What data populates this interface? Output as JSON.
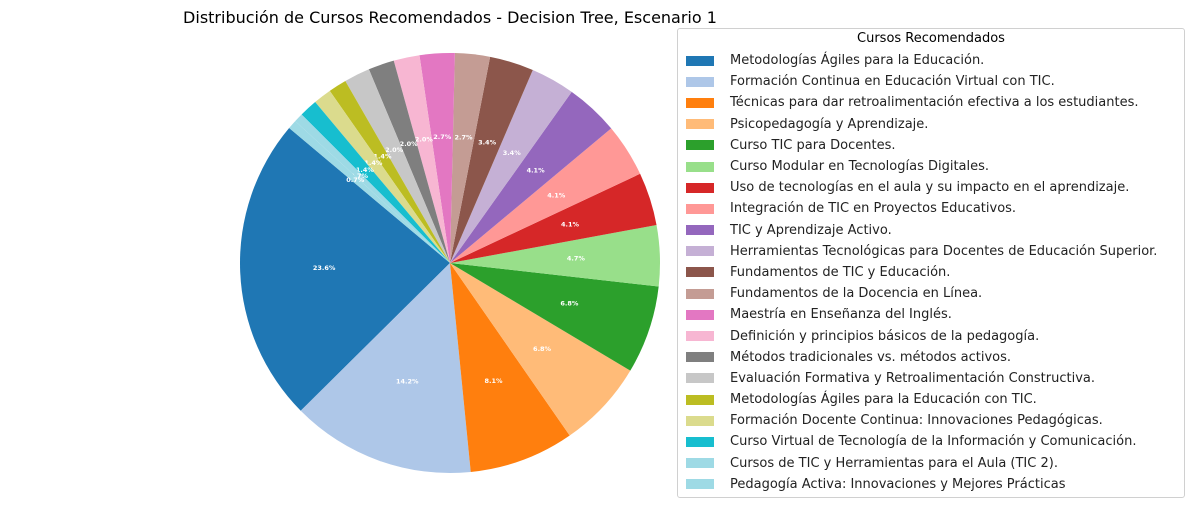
{
  "chart_data": {
    "type": "pie",
    "title": "Distribución de Cursos Recomendados - Decision Tree, Escenario 1",
    "legend_title": "Cursos Recomendados",
    "legend_position": "right",
    "slices": [
      {
        "label": "Metodologías Ágiles para la Educación.",
        "value": 23.6,
        "pct_label": "23.6%",
        "color": "#1f77b4"
      },
      {
        "label": "Formación Continua en Educación Virtual con TIC.",
        "value": 14.2,
        "pct_label": "14.2%",
        "color": "#aec7e8"
      },
      {
        "label": "Técnicas para dar retroalimentación efectiva a los estudiantes.",
        "value": 8.1,
        "pct_label": "8.1%",
        "color": "#ff7f0e"
      },
      {
        "label": "Psicopedagogía y Aprendizaje.",
        "value": 6.8,
        "pct_label": "6.8%",
        "color": "#ffbb78"
      },
      {
        "label": "Curso TIC para Docentes.",
        "value": 6.8,
        "pct_label": "6.8%",
        "color": "#2ca02c"
      },
      {
        "label": "Curso Modular en Tecnologías Digitales.",
        "value": 4.7,
        "pct_label": "4.7%",
        "color": "#98df8a"
      },
      {
        "label": "Uso de tecnologías en el aula y su impacto en el aprendizaje.",
        "value": 4.1,
        "pct_label": "4.1%",
        "color": "#d62728"
      },
      {
        "label": "Integración de TIC en Proyectos Educativos.",
        "value": 4.1,
        "pct_label": "4.1%",
        "color": "#ff9896"
      },
      {
        "label": "TIC y Aprendizaje Activo.",
        "value": 4.1,
        "pct_label": "4.1%",
        "color": "#9467bd"
      },
      {
        "label": "Herramientas Tecnológicas para Docentes de Educación Superior.",
        "value": 3.4,
        "pct_label": "3.4%",
        "color": "#c5b0d5"
      },
      {
        "label": "Fundamentos de TIC y Educación.",
        "value": 3.4,
        "pct_label": "3.4%",
        "color": "#8c564b"
      },
      {
        "label": "Fundamentos de la Docencia en Línea.",
        "value": 2.7,
        "pct_label": "2.7%",
        "color": "#c49c94"
      },
      {
        "label": "Maestría en Enseñanza del Inglés.",
        "value": 2.7,
        "pct_label": "2.7%",
        "color": "#e377c2"
      },
      {
        "label": "Definición y principios básicos de la pedagogía.",
        "value": 2.0,
        "pct_label": "2.0%",
        "color": "#f7b6d2"
      },
      {
        "label": "Métodos tradicionales vs. métodos activos.",
        "value": 2.0,
        "pct_label": "2.0%",
        "color": "#7f7f7f"
      },
      {
        "label": "Evaluación Formativa y Retroalimentación Constructiva.",
        "value": 2.0,
        "pct_label": "2.0%",
        "color": "#c7c7c7"
      },
      {
        "label": "Metodologías Ágiles para la Educación con TIC.",
        "value": 1.4,
        "pct_label": "1.4%",
        "color": "#bcbd22"
      },
      {
        "label": "Formación Docente Continua: Innovaciones Pedagógicas.",
        "value": 1.4,
        "pct_label": "1.4%",
        "color": "#dbdb8d"
      },
      {
        "label": "Curso Virtual de Tecnología de la Información y Comunicación.",
        "value": 1.4,
        "pct_label": "1.4%",
        "color": "#17becf"
      },
      {
        "label": "Cursos de TIC y Herramientas para el Aula (TIC 2).",
        "value": 0.7,
        "pct_label": "0.7%",
        "color": "#9edae5"
      },
      {
        "label": "Pedagogía Activa: Innovaciones y Mejores Prácticas",
        "value": 0.7,
        "pct_label": "0.7%",
        "color": "#9edae5"
      }
    ]
  }
}
